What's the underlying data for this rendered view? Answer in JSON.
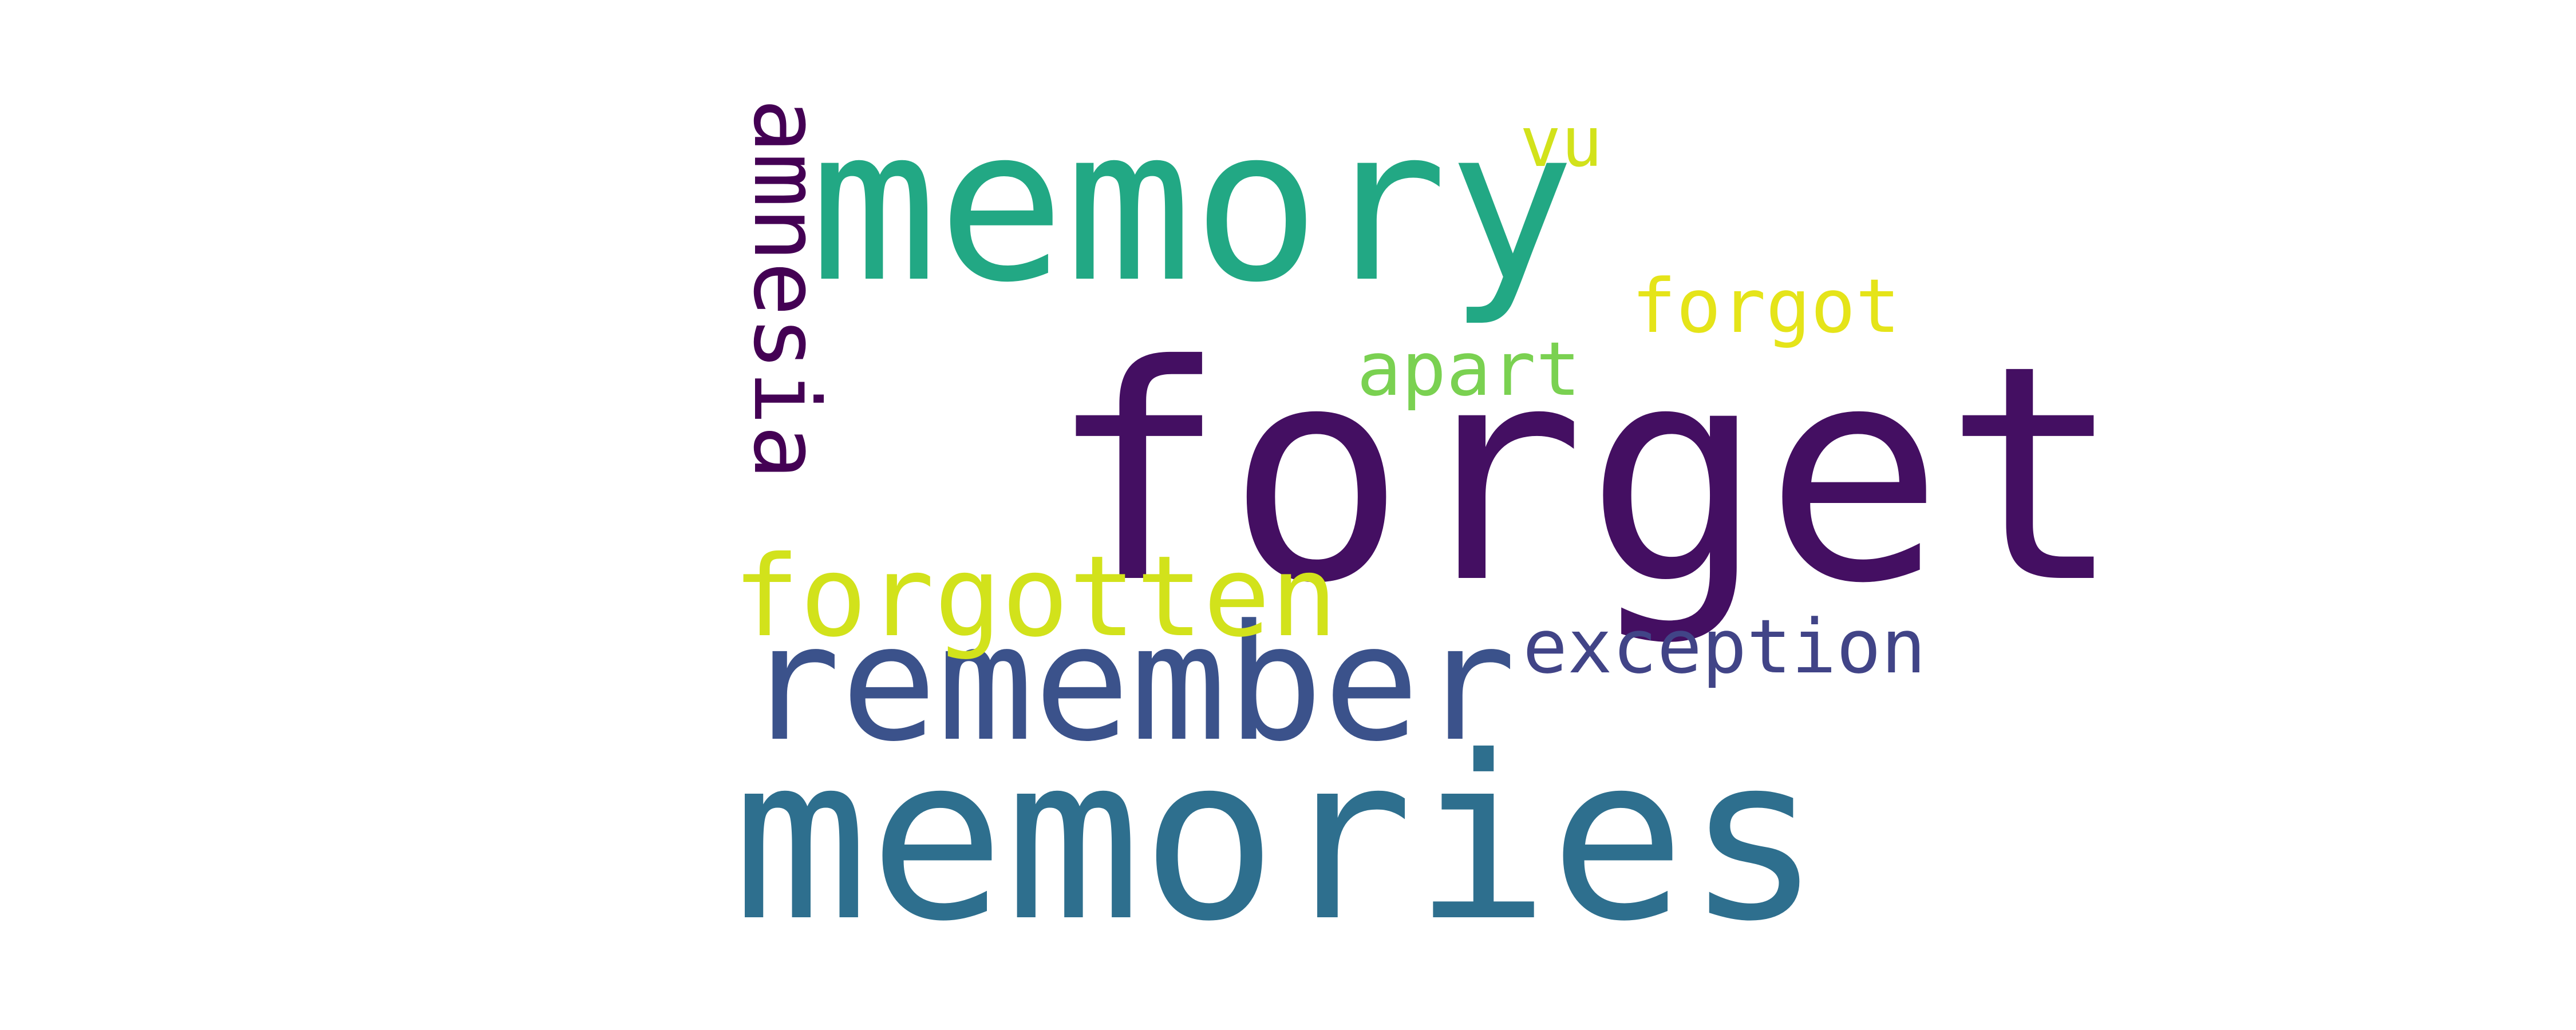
{
  "word_cloud": {
    "background_color": "#ffffff",
    "words": [
      {
        "key": "forget",
        "text": "forget",
        "color": "#440f62"
      },
      {
        "key": "memories",
        "text": "memories",
        "color": "#2e6f8e"
      },
      {
        "key": "memory",
        "text": "memory",
        "color": "#22a884"
      },
      {
        "key": "remember",
        "text": "remember",
        "color": "#3b528b"
      },
      {
        "key": "forgotten",
        "text": "forgotten",
        "color": "#d2e21b"
      },
      {
        "key": "amnesia",
        "text": "amnesia",
        "color": "#440154"
      },
      {
        "key": "exception",
        "text": "exception",
        "color": "#414487"
      },
      {
        "key": "apart",
        "text": "apart",
        "color": "#7ad151"
      },
      {
        "key": "forgot",
        "text": "forgot",
        "color": "#e5e419"
      },
      {
        "key": "vu",
        "text": "vu",
        "color": "#d2e21b"
      }
    ]
  }
}
